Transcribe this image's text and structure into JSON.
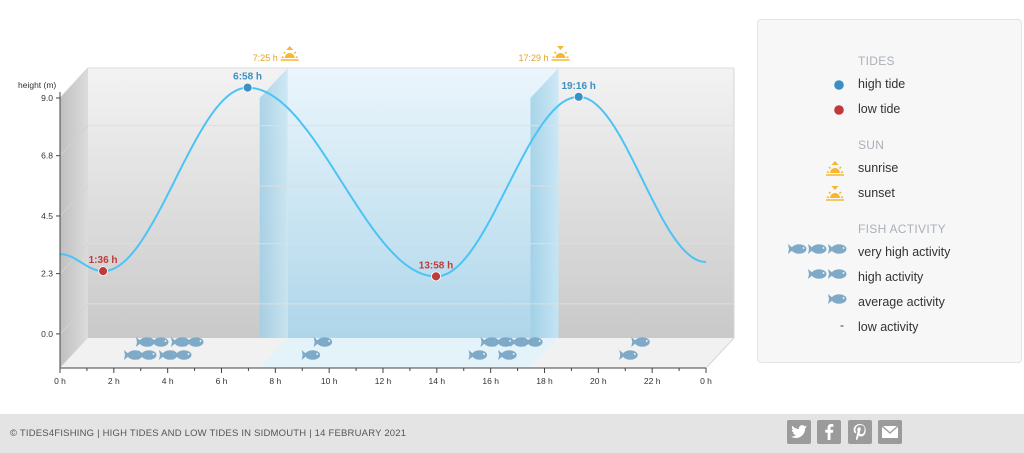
{
  "chart_data": {
    "type": "line",
    "title": "",
    "ylabel": "height (m)",
    "xlabel": "",
    "xlim": [
      0,
      24
    ],
    "ylim": [
      -1.3,
      9.0
    ],
    "yticks": [
      0.0,
      2.3,
      4.5,
      6.8,
      9.0
    ],
    "ytick_labels": [
      "0.0",
      "2.3",
      "4.5",
      "6.8",
      "9.0"
    ],
    "xticks": [
      0,
      2,
      4,
      6,
      8,
      10,
      12,
      14,
      16,
      18,
      20,
      22,
      24
    ],
    "xtick_labels": [
      "0 h",
      "2 h",
      "4 h",
      "6 h",
      "8 h",
      "10 h",
      "12 h",
      "14 h",
      "16 h",
      "18 h",
      "20 h",
      "22 h",
      "0 h"
    ],
    "series": [
      {
        "name": "tide height",
        "color": "#4cc3f5",
        "x": [
          0,
          1.6,
          6.97,
          13.97,
          19.27,
          24
        ],
        "y": [
          1.9,
          1.25,
          8.25,
          1.05,
          7.9,
          1.6
        ]
      }
    ],
    "extremes": [
      {
        "type": "low",
        "x": 1.6,
        "y": 1.25,
        "label": "1:36 h"
      },
      {
        "type": "high",
        "x": 6.97,
        "y": 8.25,
        "label": "6:58 h"
      },
      {
        "type": "low",
        "x": 13.97,
        "y": 1.05,
        "label": "13:58 h"
      },
      {
        "type": "high",
        "x": 19.27,
        "y": 7.9,
        "label": "19:16 h"
      }
    ],
    "sun": [
      {
        "type": "sunrise",
        "x": 7.42,
        "label": "7:25 h"
      },
      {
        "type": "sunset",
        "x": 17.48,
        "label": "17:29 h"
      }
    ],
    "daylight": [
      7.42,
      17.48
    ],
    "fish_activity": [
      {
        "x": 2.6,
        "count": 4
      },
      {
        "x": 3.9,
        "count": 4
      },
      {
        "x": 9.2,
        "count": 2
      },
      {
        "x": 15.4,
        "count": 3
      },
      {
        "x": 16.5,
        "count": 3
      },
      {
        "x": 21.0,
        "count": 2
      }
    ],
    "grid": true,
    "legend_position": "right"
  },
  "colors": {
    "high_tide": "#3a8fc4",
    "low_tide": "#c0393b",
    "sun": "#f5b82e",
    "sun_text": "#e0a52a",
    "fish": "#7faac7",
    "curve": "#4cc3f5"
  },
  "legend": {
    "tides_heading": "TIDES",
    "high_tide": "high tide",
    "low_tide": "low tide",
    "sun_heading": "SUN",
    "sunrise": "sunrise",
    "sunset": "sunset",
    "fish_heading": "FISH ACTIVITY",
    "very_high": "very high activity",
    "high": "high activity",
    "average": "average activity",
    "low": "low activity",
    "low_marker": "-"
  },
  "footer": {
    "text": "© TIDES4FISHING | HIGH TIDES AND LOW TIDES IN SIDMOUTH | 14 FEBRUARY 2021",
    "share_icons": [
      "twitter-icon",
      "facebook-icon",
      "pinterest-icon",
      "mail-icon"
    ]
  }
}
